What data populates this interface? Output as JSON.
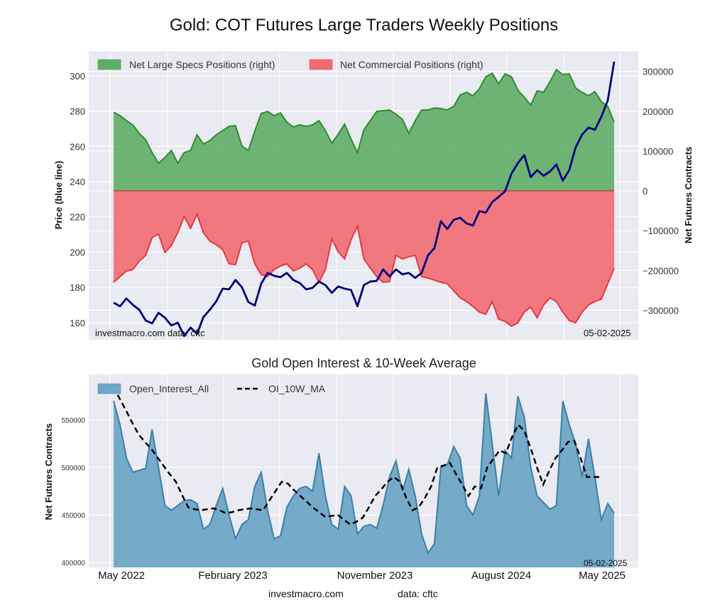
{
  "chart_data": [
    {
      "type": "area",
      "title": "Gold: COT Futures Large Traders Weekly Positions",
      "ylabel_left": "Price (blue line)",
      "ylabel_right": "Net Futures Contracts",
      "ylim_left": [
        150.3,
        314
      ],
      "ylim_right": [
        -374000,
        351000
      ],
      "yticks_left": [
        "160",
        "180",
        "200",
        "220",
        "240",
        "260",
        "280",
        "300"
      ],
      "yticks_left_values": [
        160,
        180,
        200,
        220,
        240,
        260,
        280,
        300
      ],
      "yticks_right": [
        "−300000",
        "−200000",
        "−100000",
        "0",
        "100000",
        "200000",
        "300000"
      ],
      "yticks_right_values": [
        -300000,
        -200000,
        -100000,
        0,
        100000,
        200000,
        300000
      ],
      "x_start": "May 2022",
      "x_end": "May 2025",
      "x_frequency": "bi-weekly samples",
      "grid": true,
      "legend_position": "top-left",
      "annotation_left": "investmacro.com    data: cftc",
      "annotation_right": "05-02-2025",
      "series": [
        {
          "name": "Net Large Specs Positions (right)",
          "axis": "right",
          "color": "#2e8b2e",
          "fill": "#5fae66",
          "values": [
            197600,
            188700,
            176300,
            165600,
            144200,
            128200,
            96100,
            69400,
            83700,
            101500,
            69400,
            96100,
            101500,
            140700,
            117500,
            126400,
            140700,
            151300,
            162000,
            163800,
            112200,
            101500,
            149600,
            194100,
            199400,
            188700,
            195800,
            172700,
            160200,
            165600,
            162000,
            165600,
            176300,
            151300,
            119300,
            142400,
            167400,
            130000,
            96100,
            153100,
            176300,
            199400,
            201200,
            203000,
            192300,
            179800,
            144200,
            176300,
            203000,
            203000,
            208300,
            206500,
            203000,
            211900,
            240400,
            247500,
            238600,
            256400,
            286600,
            295500,
            268800,
            293800,
            286600,
            252800,
            235000,
            215400,
            251000,
            247500,
            274200,
            304500,
            292000,
            293800,
            258200,
            247500,
            238600,
            249300,
            224300,
            211900,
            172700
          ]
        },
        {
          "name": "Net Commercial Positions (right)",
          "axis": "right",
          "color": "#e8363d",
          "fill": "#f26c72",
          "values": [
            -229700,
            -215400,
            -201200,
            -197600,
            -176300,
            -162000,
            -117500,
            -108600,
            -154900,
            -137100,
            -105000,
            -64100,
            -94400,
            -58800,
            -105000,
            -126400,
            -135300,
            -147800,
            -183400,
            -185200,
            -130000,
            -126400,
            -183400,
            -210100,
            -215400,
            -197600,
            -188700,
            -183400,
            -201200,
            -194100,
            -183400,
            -197600,
            -229700,
            -197600,
            -121100,
            -153100,
            -170900,
            -122800,
            -89000,
            -170900,
            -194100,
            -215400,
            -229700,
            -227900,
            -162000,
            -170900,
            -165600,
            -162000,
            -215400,
            -219000,
            -224300,
            -229700,
            -233200,
            -251000,
            -268800,
            -277700,
            -290200,
            -304500,
            -309800,
            -277700,
            -322300,
            -327600,
            -340100,
            -331200,
            -304500,
            -292000,
            -318700,
            -286600,
            -268800,
            -277700,
            -304500,
            -325800,
            -331200,
            -304500,
            -286600,
            -277700,
            -272400,
            -233200,
            -194100
          ]
        },
        {
          "name": "Price (blue line)",
          "axis": "left",
          "color": "#000080",
          "values": [
            171.3,
            169.3,
            173.7,
            170.1,
            167.3,
            161.2,
            159.6,
            165.6,
            162.8,
            158.4,
            160.0,
            152.4,
            157.2,
            153.6,
            163.2,
            167.3,
            172.1,
            179.3,
            178.9,
            184.2,
            180.1,
            171.7,
            169.7,
            182.1,
            188.2,
            186.6,
            185.8,
            188.2,
            184.2,
            182.5,
            178.9,
            179.7,
            183.3,
            181.3,
            176.9,
            180.5,
            179.3,
            178.5,
            169.3,
            181.3,
            183.3,
            183.7,
            190.2,
            186.2,
            190.2,
            187.4,
            188.2,
            185.4,
            188.2,
            198.2,
            202.3,
            217.5,
            213.1,
            218.3,
            219.5,
            216.3,
            215.1,
            223.2,
            222.4,
            228.4,
            231.3,
            234.5,
            244.5,
            250.5,
            255.0,
            242.5,
            246.5,
            243.3,
            245.7,
            249.7,
            240.5,
            246.5,
            259.4,
            266.6,
            270.6,
            269.4,
            276.7,
            285.9,
            308.0
          ]
        }
      ]
    },
    {
      "type": "area",
      "title": "Gold Open Interest & 10-Week Average",
      "ylabel": "Net Futures Contracts",
      "ylim": [
        394800,
        597800
      ],
      "yticks": [
        "400000",
        "450000",
        "500000",
        "550000"
      ],
      "yticks_values": [
        400000,
        450000,
        500000,
        550000
      ],
      "xticks": [
        "May 2022",
        "February 2023",
        "November 2023",
        "August 2024",
        "May 2025"
      ],
      "grid": true,
      "legend_position": "top-left",
      "annotation_right": "05-02-2025",
      "series": [
        {
          "name": "Open_Interest_All",
          "color": "#3a7fa8",
          "fill": "#6fa6c6",
          "values": [
            570000,
            545000,
            510000,
            495000,
            497000,
            499000,
            540000,
            500000,
            460000,
            455000,
            460000,
            465000,
            466000,
            462000,
            435000,
            440000,
            460000,
            478000,
            450000,
            425000,
            440000,
            445000,
            480000,
            495000,
            455000,
            425000,
            428000,
            458000,
            470000,
            478000,
            480000,
            475000,
            515000,
            470000,
            440000,
            435000,
            480000,
            470000,
            430000,
            438000,
            440000,
            436000,
            460000,
            490000,
            507000,
            475000,
            498000,
            470000,
            430000,
            410000,
            420000,
            500000,
            503000,
            522000,
            510000,
            460000,
            450000,
            470000,
            578000,
            525000,
            470000,
            518000,
            510000,
            575000,
            553000,
            500000,
            470000,
            463000,
            456000,
            460000,
            570000,
            545000,
            525000,
            490000,
            530000,
            490000,
            445000,
            462000,
            452000
          ]
        },
        {
          "name": "OI_10W_MA",
          "color": "#000000",
          "style": "dashed",
          "values": [
            585000,
            572000,
            560000,
            547000,
            535000,
            527000,
            520000,
            511000,
            502000,
            493000,
            485000,
            471000,
            458000,
            456000,
            455000,
            456000,
            457000,
            455000,
            452000,
            453000,
            455000,
            456000,
            457000,
            456000,
            455000,
            465000,
            475000,
            485000,
            483000,
            476000,
            470000,
            464000,
            458000,
            453000,
            448000,
            449000,
            450000,
            445000,
            440000,
            443000,
            447000,
            458000,
            470000,
            477000,
            485000,
            490000,
            485000,
            468000,
            455000,
            458000,
            468000,
            480000,
            500000,
            502000,
            505000,
            493000,
            482000,
            470000,
            480000,
            478000,
            500000,
            509000,
            518000,
            515000,
            532000,
            545000,
            538000,
            520000,
            500000,
            482000,
            497000,
            510000,
            518000,
            527000,
            528000,
            510000,
            490000,
            490000,
            490000
          ]
        }
      ]
    }
  ],
  "footer": {
    "site": "investmacro.com",
    "source": "data: cftc"
  }
}
